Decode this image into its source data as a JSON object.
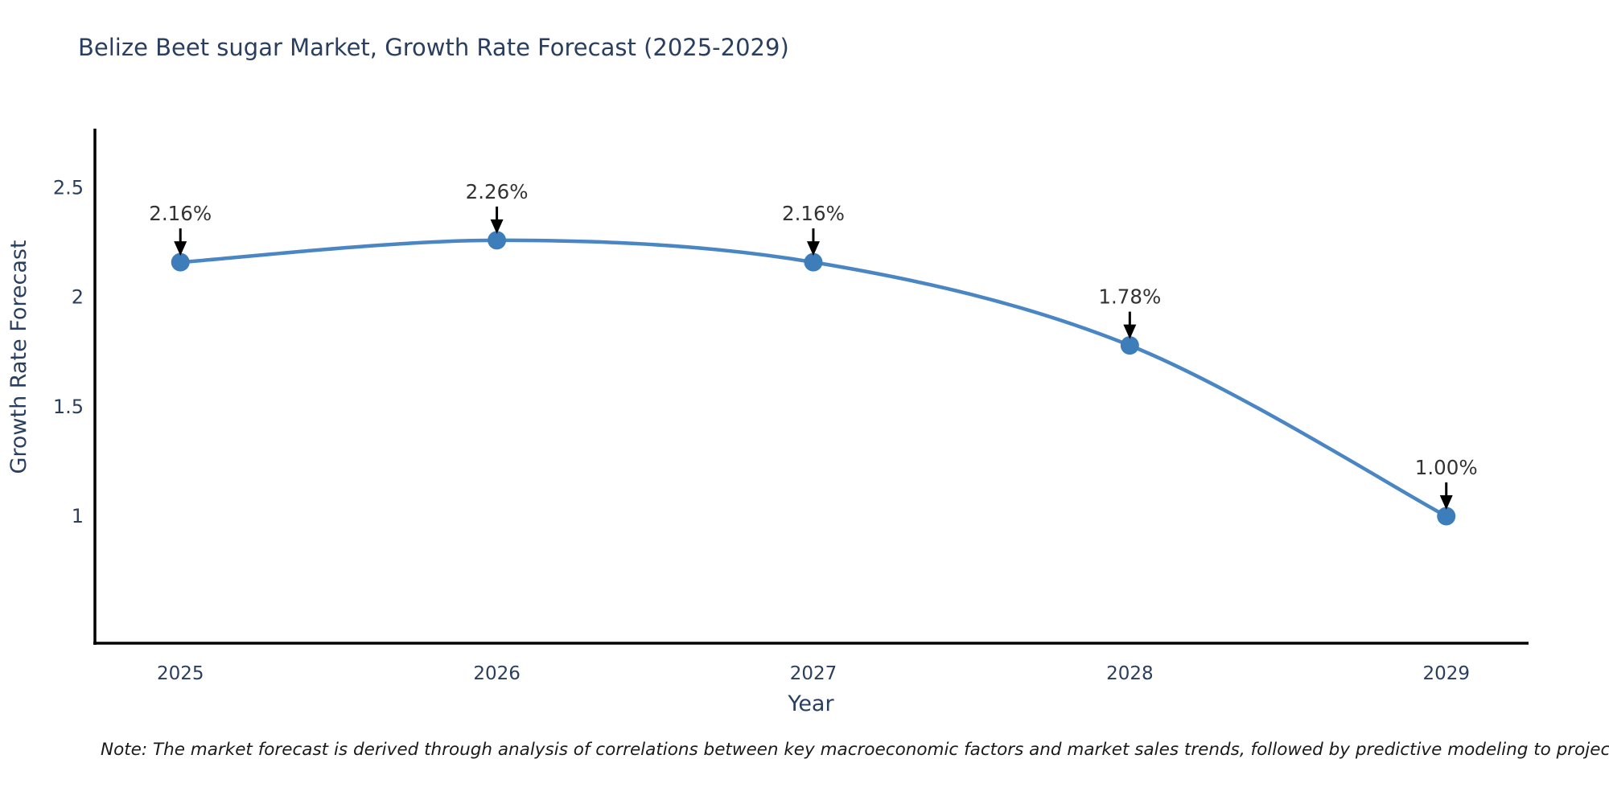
{
  "title": "Belize Beet sugar Market, Growth Rate Forecast (2025-2029)",
  "note": "Note: The market forecast is derived through analysis of correlations between key macroeconomic factors and market sales trends, followed by predictive modeling to project future sales",
  "chart_data": {
    "type": "line",
    "title": "Belize Beet sugar Market, Growth Rate Forecast (2025-2029)",
    "x": [
      2025,
      2026,
      2027,
      2028,
      2029
    ],
    "categories": [
      "2025",
      "2026",
      "2027",
      "2028",
      "2029"
    ],
    "values": [
      2.16,
      2.26,
      2.16,
      1.78,
      1.0
    ],
    "point_labels": [
      "2.16%",
      "2.26%",
      "2.16%",
      "1.78%",
      "1.00%"
    ],
    "xlabel": "Year",
    "ylabel": "Growth Rate Forecast",
    "yticks": [
      1,
      1.5,
      2,
      2.5
    ],
    "ytick_labels": [
      "1",
      "1.5",
      "2",
      "2.5"
    ],
    "xlim": [
      2024.73,
      2029.26
    ],
    "ylim": [
      0.42,
      2.77
    ],
    "line_shape": "spline",
    "grid": false,
    "legend_position": "none",
    "colors": {
      "line": "#4986c3",
      "marker": "#3d7dba",
      "axis": "#000000",
      "tick_text": "#2a3f5f",
      "axis_title_text": "#2a3f5f",
      "annotation_text": "#333333",
      "arrow": "#000000",
      "background": "#ffffff"
    }
  }
}
